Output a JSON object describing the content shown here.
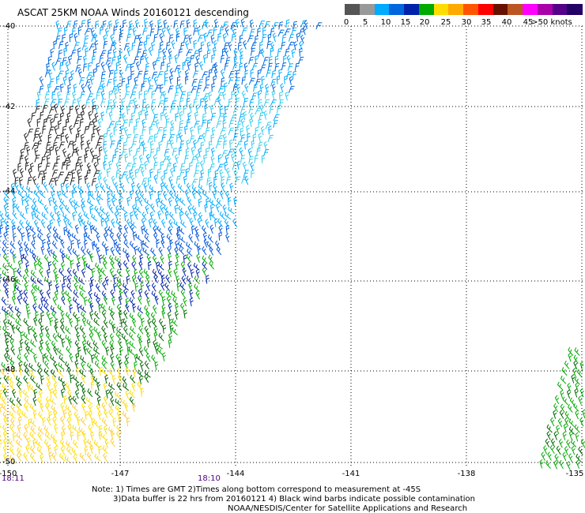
{
  "title": "ASCAT 25KM NOAA Winds 20160121 descending",
  "legend": {
    "colors": [
      "#555555",
      "#999999",
      "#00aaff",
      "#0066dd",
      "#0022aa",
      "#00aa00",
      "#ffdd00",
      "#ffaa00",
      "#ff5500",
      "#ff0000",
      "#661100",
      "#bb5522",
      "#ff00ff",
      "#aa00aa",
      "#550088",
      "#220066"
    ],
    "labels": [
      "0",
      "5",
      "10",
      "15",
      "20",
      "25",
      "30",
      "35",
      "40",
      "45",
      ">50 knots"
    ]
  },
  "lat_labels": [
    "-40",
    "-42",
    "-44",
    "-46",
    "-48",
    "-50"
  ],
  "lon_labels": [
    "-150",
    "-147",
    "-144",
    "-141",
    "-138",
    "-135"
  ],
  "times": [
    "18:11",
    "18:10"
  ],
  "notes": [
    "Note: 1) Times are GMT 2)Times along bottom correspond to measurement at -45S",
    "3)Data buffer is 22 hrs from 20160121 4) Black wind barbs indicate possible contamination",
    "NOAA/NESDIS/Center for Satellite Applications and Research"
  ]
}
